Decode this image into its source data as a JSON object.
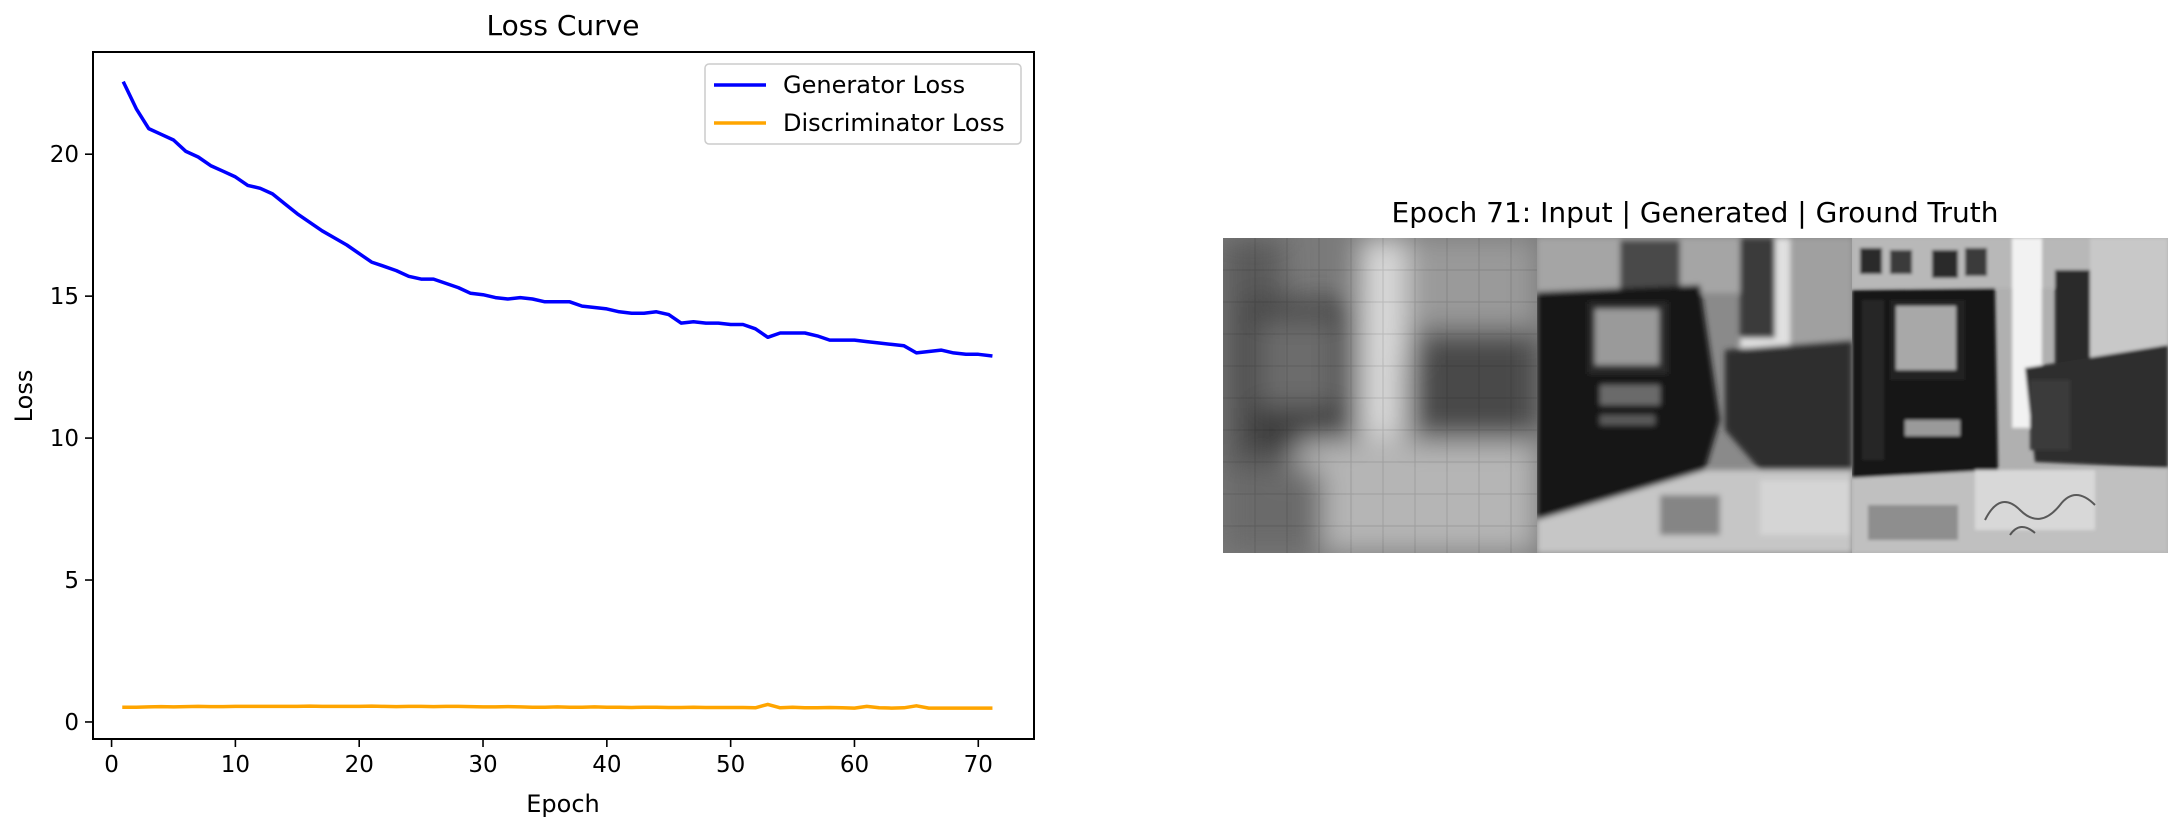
{
  "chart_data": {
    "type": "line",
    "title": "Loss Curve",
    "xlabel": "Epoch",
    "ylabel": "Loss",
    "xlim": [
      -1.5,
      74.5
    ],
    "ylim": [
      -0.6,
      23.6
    ],
    "xticks": [
      0,
      10,
      20,
      30,
      40,
      50,
      60,
      70
    ],
    "yticks": [
      0,
      5,
      10,
      15,
      20
    ],
    "grid": false,
    "legend_position": "top-right",
    "x": [
      1,
      2,
      3,
      4,
      5,
      6,
      7,
      8,
      9,
      10,
      11,
      12,
      13,
      14,
      15,
      16,
      17,
      18,
      19,
      20,
      21,
      22,
      23,
      24,
      25,
      26,
      27,
      28,
      29,
      30,
      31,
      32,
      33,
      34,
      35,
      36,
      37,
      38,
      39,
      40,
      41,
      42,
      43,
      44,
      45,
      46,
      47,
      48,
      49,
      50,
      51,
      52,
      53,
      54,
      55,
      56,
      57,
      58,
      59,
      60,
      61,
      62,
      63,
      64,
      65,
      66,
      67,
      68,
      69,
      70,
      71
    ],
    "series": [
      {
        "name": "Generator Loss",
        "color": "#0000ff",
        "values": [
          22.5,
          21.6,
          20.9,
          20.7,
          20.5,
          20.1,
          19.9,
          19.6,
          19.4,
          19.2,
          18.9,
          18.8,
          18.6,
          18.25,
          17.9,
          17.6,
          17.3,
          17.05,
          16.8,
          16.5,
          16.2,
          16.05,
          15.9,
          15.7,
          15.6,
          15.6,
          15.45,
          15.3,
          15.1,
          15.05,
          14.95,
          14.9,
          14.95,
          14.9,
          14.8,
          14.8,
          14.8,
          14.65,
          14.6,
          14.55,
          14.45,
          14.4,
          14.4,
          14.45,
          14.35,
          14.05,
          14.1,
          14.05,
          14.05,
          14.0,
          14.0,
          13.85,
          13.55,
          13.7,
          13.7,
          13.7,
          13.6,
          13.45,
          13.45,
          13.45,
          13.4,
          13.35,
          13.3,
          13.25,
          13.0,
          13.05,
          13.1,
          13.0,
          12.95,
          12.95,
          12.9
        ]
      },
      {
        "name": "Discriminator Loss",
        "color": "#ffa500",
        "values": [
          0.52,
          0.52,
          0.53,
          0.54,
          0.53,
          0.54,
          0.55,
          0.54,
          0.54,
          0.55,
          0.55,
          0.55,
          0.55,
          0.55,
          0.55,
          0.56,
          0.55,
          0.55,
          0.55,
          0.55,
          0.56,
          0.55,
          0.54,
          0.55,
          0.55,
          0.54,
          0.55,
          0.55,
          0.54,
          0.53,
          0.53,
          0.54,
          0.53,
          0.52,
          0.52,
          0.53,
          0.52,
          0.52,
          0.53,
          0.52,
          0.52,
          0.51,
          0.52,
          0.52,
          0.51,
          0.51,
          0.52,
          0.51,
          0.51,
          0.51,
          0.51,
          0.5,
          0.62,
          0.5,
          0.52,
          0.5,
          0.5,
          0.51,
          0.5,
          0.49,
          0.55,
          0.5,
          0.49,
          0.5,
          0.57,
          0.49,
          0.49,
          0.49,
          0.49,
          0.49,
          0.49
        ]
      }
    ]
  },
  "image_panel": {
    "title": "Epoch 71: Input | Generated | Ground Truth"
  }
}
